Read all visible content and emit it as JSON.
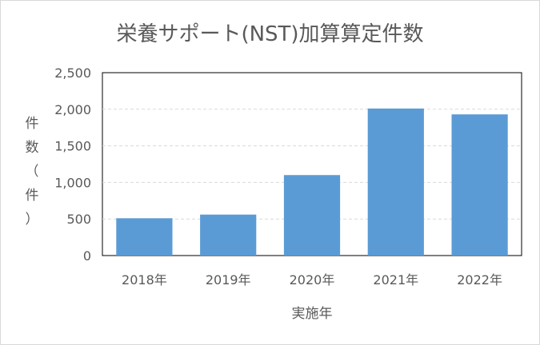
{
  "chart_data": {
    "type": "bar",
    "title": "栄養サポート(NST)加算算定件数",
    "xlabel": "実施年",
    "ylabel": "件数（件）",
    "categories": [
      "2018年",
      "2019年",
      "2020年",
      "2021年",
      "2022年"
    ],
    "values": [
      510,
      560,
      1100,
      2010,
      1930
    ],
    "ylim": [
      0,
      2500
    ],
    "yticks": [
      "0",
      "500",
      "1,000",
      "1,500",
      "2,000",
      "2,500"
    ],
    "grid": true,
    "legend": "none",
    "bar_color": "#5b9bd5"
  }
}
